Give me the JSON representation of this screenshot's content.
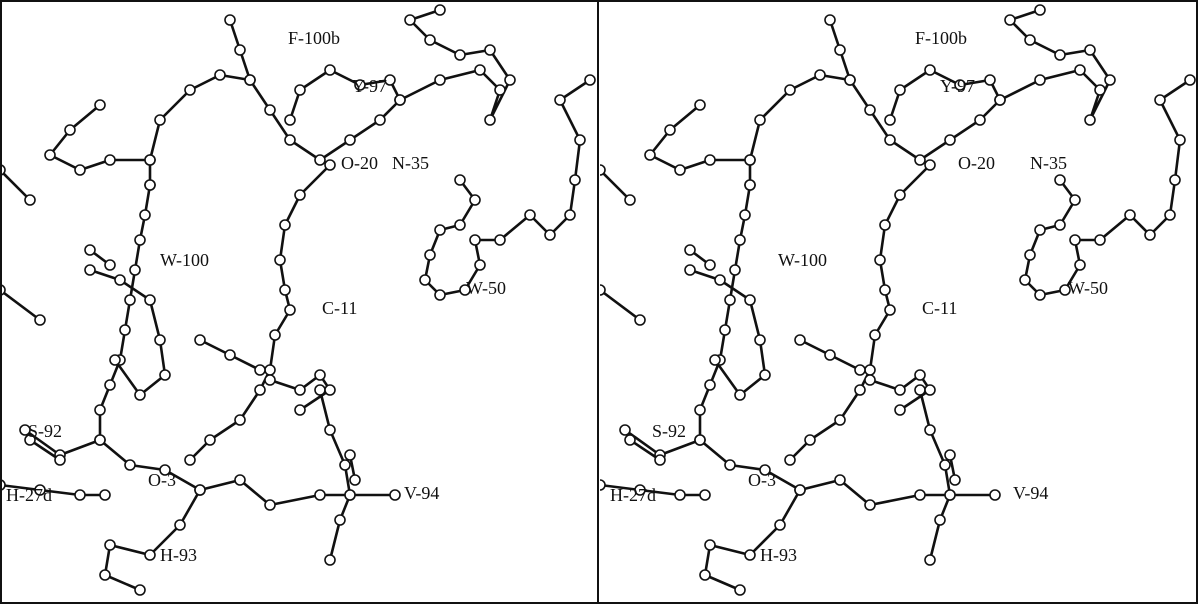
{
  "panels": [
    {
      "labels": [
        "F-100b",
        "Y-97",
        "O-20",
        "N-35",
        "W-100",
        "W-50",
        "C-11",
        "S-92",
        "O-3",
        "V-94",
        "H-27d",
        "H-93"
      ]
    },
    {
      "labels": [
        "F-100b",
        "Y-97",
        "O-20",
        "N-35",
        "W-100",
        "W-50",
        "C-11",
        "S-92",
        "O-3",
        "V-94",
        "H-27d",
        "H-93"
      ]
    }
  ]
}
